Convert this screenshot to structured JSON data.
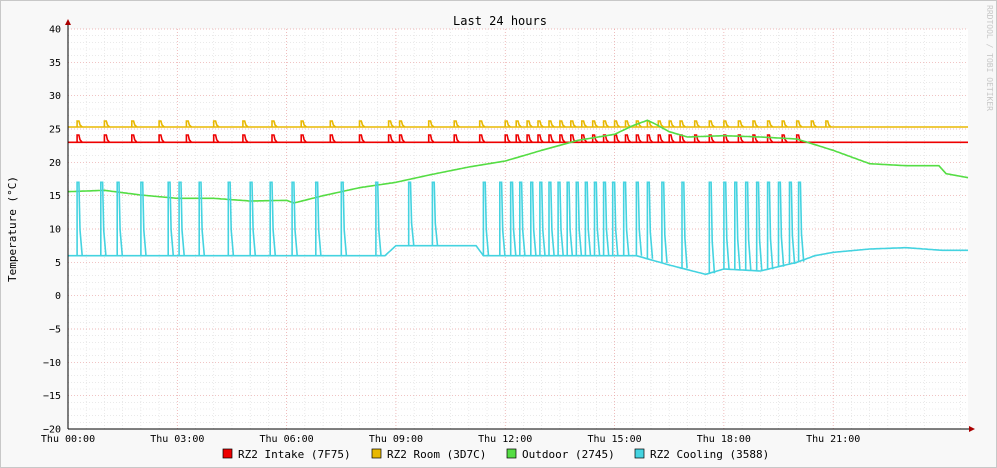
{
  "chart_data": {
    "type": "line",
    "title": "Last 24 hours",
    "watermark": "RRDTOOL / TOBI OETIKER",
    "ylabel": "Temperature (°C)",
    "xlabel": "",
    "ylim": [
      -20,
      40
    ],
    "yticks": [
      -20,
      -15,
      -10,
      -5,
      0,
      5,
      10,
      15,
      20,
      25,
      30,
      35,
      40
    ],
    "xlim_hours": [
      0,
      24.7
    ],
    "xticks": [
      {
        "hour": 0,
        "label": "Thu 00:00"
      },
      {
        "hour": 3,
        "label": "Thu 03:00"
      },
      {
        "hour": 6,
        "label": "Thu 06:00"
      },
      {
        "hour": 9,
        "label": "Thu 09:00"
      },
      {
        "hour": 12,
        "label": "Thu 12:00"
      },
      {
        "hour": 15,
        "label": "Thu 15:00"
      },
      {
        "hour": 18,
        "label": "Thu 18:00"
      },
      {
        "hour": 21,
        "label": "Thu 21:00"
      }
    ],
    "grid": true,
    "legend_position": "bottom",
    "series": [
      {
        "name": "RZ2 Intake (7F75)",
        "color": "#ee0000",
        "baseline": 23.0,
        "spike": 24.1,
        "spike_hours": [
          0.25,
          1.0,
          1.75,
          2.5,
          3.25,
          4.0,
          4.8,
          5.6,
          6.4,
          7.2,
          8.0,
          8.8,
          9.1,
          9.9,
          10.6,
          11.3,
          12.0,
          12.3,
          12.6,
          12.9,
          13.2,
          13.5,
          13.8,
          14.1,
          14.4,
          14.7,
          15.0,
          15.3,
          15.6,
          15.9,
          16.2,
          16.5,
          16.8,
          17.2,
          17.6,
          18.0,
          18.4,
          18.8,
          19.2,
          19.6,
          20.0
        ],
        "points": [
          [
            0.0,
            23.0
          ],
          [
            24.7,
            23.0
          ]
        ]
      },
      {
        "name": "RZ2 Room (3D7C)",
        "color": "#e8b800",
        "baseline": 25.3,
        "spike": 26.2,
        "spike_hours": [
          0.25,
          1.0,
          1.75,
          2.5,
          3.25,
          4.0,
          4.8,
          5.6,
          6.4,
          7.2,
          8.0,
          8.8,
          9.1,
          9.9,
          10.6,
          11.3,
          12.0,
          12.3,
          12.6,
          12.9,
          13.2,
          13.5,
          13.8,
          14.1,
          14.4,
          14.7,
          15.0,
          15.3,
          15.6,
          15.9,
          16.2,
          16.5,
          16.8,
          17.2,
          17.6,
          18.0,
          18.4,
          18.8,
          19.2,
          19.6,
          20.0,
          20.4,
          20.8
        ],
        "points": [
          [
            0.0,
            25.3
          ],
          [
            24.7,
            25.3
          ]
        ]
      },
      {
        "name": "Outdoor (2745)",
        "color": "#55dd44",
        "points": [
          [
            0.0,
            15.6
          ],
          [
            1.0,
            15.8
          ],
          [
            2.0,
            15.1
          ],
          [
            3.0,
            14.6
          ],
          [
            4.0,
            14.6
          ],
          [
            5.0,
            14.2
          ],
          [
            6.0,
            14.3
          ],
          [
            6.2,
            13.9
          ],
          [
            7.0,
            15.0
          ],
          [
            8.0,
            16.2
          ],
          [
            9.0,
            17.0
          ],
          [
            10.0,
            18.2
          ],
          [
            11.0,
            19.3
          ],
          [
            12.0,
            20.2
          ],
          [
            13.0,
            21.8
          ],
          [
            14.0,
            23.3
          ],
          [
            15.0,
            24.2
          ],
          [
            15.5,
            25.5
          ],
          [
            15.9,
            26.3
          ],
          [
            16.1,
            25.8
          ],
          [
            16.5,
            24.6
          ],
          [
            17.0,
            23.8
          ],
          [
            18.0,
            24.0
          ],
          [
            19.0,
            23.8
          ],
          [
            20.0,
            23.5
          ],
          [
            21.0,
            21.8
          ],
          [
            22.0,
            19.8
          ],
          [
            23.0,
            19.5
          ],
          [
            23.9,
            19.5
          ],
          [
            24.1,
            18.3
          ],
          [
            24.7,
            17.7
          ]
        ]
      },
      {
        "name": "RZ2 Cooling (3588)",
        "color": "#44d3e0",
        "baseline": 6.0,
        "spike": 17.0,
        "spike_hours": [
          0.25,
          0.9,
          1.35,
          2.0,
          2.75,
          3.05,
          3.6,
          4.4,
          5.0,
          5.55,
          6.15,
          6.8,
          7.5,
          8.45,
          9.35,
          10.0,
          11.4,
          11.85,
          12.15,
          12.4,
          12.7,
          12.95,
          13.2,
          13.45,
          13.7,
          13.95,
          14.2,
          14.45,
          14.7,
          14.95,
          15.25,
          15.6,
          15.9,
          16.3,
          16.85,
          17.6,
          18.0,
          18.3,
          18.6,
          18.9,
          19.2,
          19.5,
          19.8,
          20.05
        ],
        "points": [
          [
            0.0,
            6.0
          ],
          [
            8.7,
            6.0
          ],
          [
            9.0,
            7.5
          ],
          [
            11.2,
            7.5
          ],
          [
            11.4,
            6.0
          ],
          [
            15.6,
            6.0
          ],
          [
            16.5,
            4.6
          ],
          [
            17.5,
            3.2
          ],
          [
            18.0,
            4.0
          ],
          [
            19.0,
            3.7
          ],
          [
            20.0,
            5.0
          ],
          [
            20.5,
            6.0
          ],
          [
            21.0,
            6.5
          ],
          [
            22.0,
            7.0
          ],
          [
            23.0,
            7.2
          ],
          [
            24.0,
            6.8
          ],
          [
            24.7,
            6.8
          ]
        ]
      }
    ]
  }
}
